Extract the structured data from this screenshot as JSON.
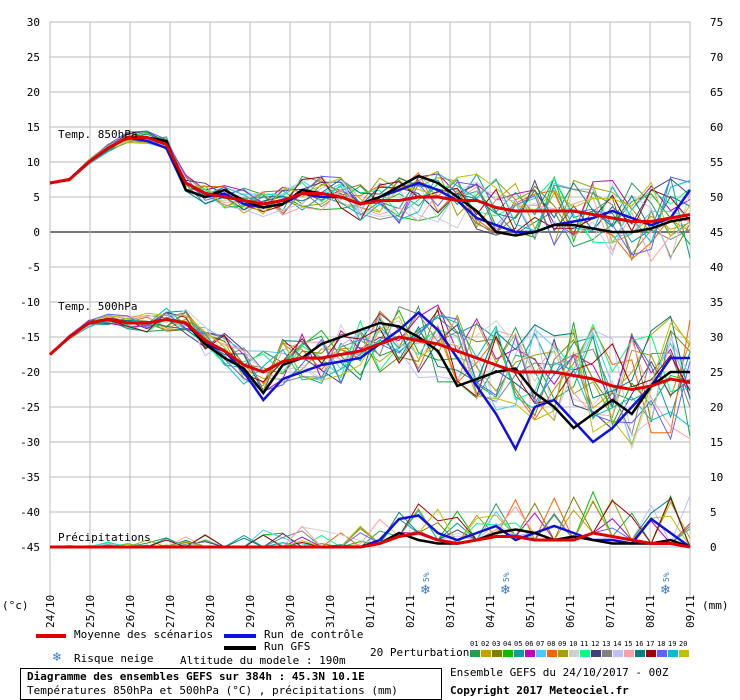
{
  "chart_data": {
    "type": "line",
    "title": "Diagramme des ensembles GEFS sur 384h : 45.3N 10.1E",
    "subtitle": "Températures 850hPa et 500hPa (°C) , précipitations (mm)",
    "left_axis": {
      "label": "(°c)",
      "ticks": [
        30,
        25,
        20,
        15,
        10,
        5,
        0,
        -5,
        -10,
        -15,
        -20,
        -25,
        -30,
        -35,
        -40,
        -45
      ]
    },
    "right_axis": {
      "label": "(mm)",
      "ticks": [
        75,
        70,
        65,
        60,
        55,
        50,
        45,
        40,
        35,
        30,
        25,
        20,
        15,
        10,
        5,
        0
      ]
    },
    "x_ticks": [
      "24/10",
      "25/10",
      "26/10",
      "27/10",
      "28/10",
      "29/10",
      "30/10",
      "31/10",
      "01/11",
      "02/11",
      "03/11",
      "04/11",
      "05/11",
      "06/11",
      "07/11",
      "08/11",
      "09/11"
    ],
    "panel_labels": {
      "t850": "Temp. 850hPa",
      "t500": "Temp. 500hPa",
      "precip": "Précipitations"
    },
    "snow_markers": [
      {
        "date": "02/11",
        "label": "5%"
      },
      {
        "date": "04/11",
        "label": "5%"
      },
      {
        "date": "08/11",
        "label": "5%"
      }
    ],
    "series": [
      {
        "name": "Moyenne des scénarios",
        "color": "#e00000",
        "t850": [
          7,
          7.5,
          10,
          12,
          13.5,
          13.5,
          12.5,
          7,
          5.5,
          5,
          4.5,
          4,
          4.5,
          5.5,
          5.5,
          5,
          4,
          4.5,
          4.5,
          5,
          5,
          4.5,
          4.5,
          3.5,
          3,
          3,
          3,
          3,
          2.5,
          2,
          1.5,
          1.5,
          2,
          2.5
        ],
        "t500": [
          -17.5,
          -15,
          -13,
          -12.5,
          -13,
          -13,
          -12.5,
          -13,
          -15.5,
          -17,
          -19,
          -20,
          -18.5,
          -18,
          -18,
          -17.5,
          -17,
          -16,
          -15,
          -15.5,
          -16,
          -17,
          -18,
          -19,
          -20,
          -20,
          -20,
          -20.5,
          -21,
          -22,
          -22.5,
          -22,
          -21,
          -21.5
        ],
        "precip": [
          0,
          0,
          0,
          0,
          0,
          0,
          0,
          0,
          0,
          0,
          0,
          0,
          0,
          0,
          0,
          0,
          0,
          0.5,
          1.5,
          2,
          1,
          0.5,
          1,
          1.5,
          1.5,
          1,
          1,
          1,
          2,
          1.5,
          1,
          0.5,
          0.5,
          0
        ]
      },
      {
        "name": "Run de contrôle",
        "color": "#1010e0",
        "t850": [
          7,
          7.5,
          10,
          12,
          13.5,
          13,
          12,
          6,
          5,
          5.5,
          4,
          3.5,
          4,
          5.5,
          5,
          5,
          4,
          5,
          6,
          7,
          6,
          4.5,
          2,
          1,
          0,
          0,
          1,
          1.5,
          2,
          3,
          2,
          1,
          2,
          6
        ],
        "t500": [
          -17.5,
          -15,
          -13,
          -12.5,
          -13,
          -13,
          -12.5,
          -13,
          -16,
          -17,
          -20,
          -24,
          -21,
          -20,
          -19,
          -18.5,
          -18,
          -16,
          -14,
          -11.5,
          -14,
          -18,
          -22,
          -26,
          -31,
          -25,
          -24,
          -27,
          -30,
          -28,
          -25,
          -22,
          -18,
          -18
        ],
        "precip": [
          0,
          0,
          0,
          0,
          0,
          0,
          0,
          0,
          0,
          0,
          0,
          0,
          0,
          0,
          0,
          0,
          0,
          1,
          4,
          4.5,
          2,
          1,
          2,
          3,
          1,
          2,
          3,
          2,
          1,
          1,
          0.5,
          4,
          2,
          0
        ]
      },
      {
        "name": "Run GFS",
        "color": "#000000",
        "t850": [
          7,
          7.5,
          10,
          12,
          13.5,
          13.5,
          13,
          6,
          5,
          6,
          4.5,
          3.5,
          4,
          6,
          5.5,
          5,
          4,
          5,
          6.5,
          8,
          7,
          5,
          3,
          0,
          -0.5,
          0,
          1,
          1,
          0.5,
          0,
          0,
          0.5,
          1.5,
          2
        ],
        "t500": [
          -17.5,
          -15,
          -13,
          -12.5,
          -13,
          -13,
          -12.5,
          -13,
          -16,
          -18,
          -19.5,
          -23,
          -19,
          -18,
          -16,
          -15,
          -14,
          -13,
          -13.5,
          -15,
          -17,
          -22,
          -21,
          -20,
          -19.5,
          -23,
          -25,
          -28,
          -26,
          -24,
          -26,
          -22,
          -20,
          -20
        ],
        "precip": [
          0,
          0,
          0,
          0,
          0,
          0,
          0,
          0,
          0,
          0,
          0,
          0,
          0,
          0,
          0,
          0,
          0,
          0.5,
          2,
          1,
          0.5,
          0.5,
          1,
          2,
          2.5,
          2,
          1,
          1.5,
          1,
          0.5,
          0.5,
          0.5,
          1,
          0
        ]
      }
    ]
  },
  "legend": {
    "mean_label": "Moyenne des scénarios",
    "control_label": "Run de contrôle",
    "gfs_label": "Run GFS",
    "snow_label": "Risque neige",
    "altitude_label": "Altitude du modele : 190m",
    "perturbations_label": "20 Perturbations",
    "perturbation_numbers": [
      "01",
      "02",
      "03",
      "04",
      "05",
      "06",
      "07",
      "08",
      "09",
      "10",
      "11",
      "12",
      "13",
      "14",
      "15",
      "16",
      "17",
      "18",
      "19",
      "20"
    ],
    "perturbation_colors": [
      "#20a050",
      "#c8a000",
      "#808000",
      "#00c000",
      "#00a0a0",
      "#c000c0",
      "#50c8ff",
      "#ff6000",
      "#a0a000",
      "#d0d0d0",
      "#00ff80",
      "#404080",
      "#808080",
      "#c0c0ff",
      "#ffa0a0",
      "#008080",
      "#a00000",
      "#6060ff",
      "#00c0c0",
      "#c0c000"
    ]
  },
  "footer": {
    "title": "Diagramme des ensembles GEFS sur 384h : 45.3N 10.1E",
    "subtitle": "Températures 850hPa et 500hPa (°C) , précipitations (mm)",
    "ensemble": "Ensemble GEFS du 24/10/2017 - 00Z",
    "copyright": "Copyright 2017 Meteociel.fr"
  }
}
